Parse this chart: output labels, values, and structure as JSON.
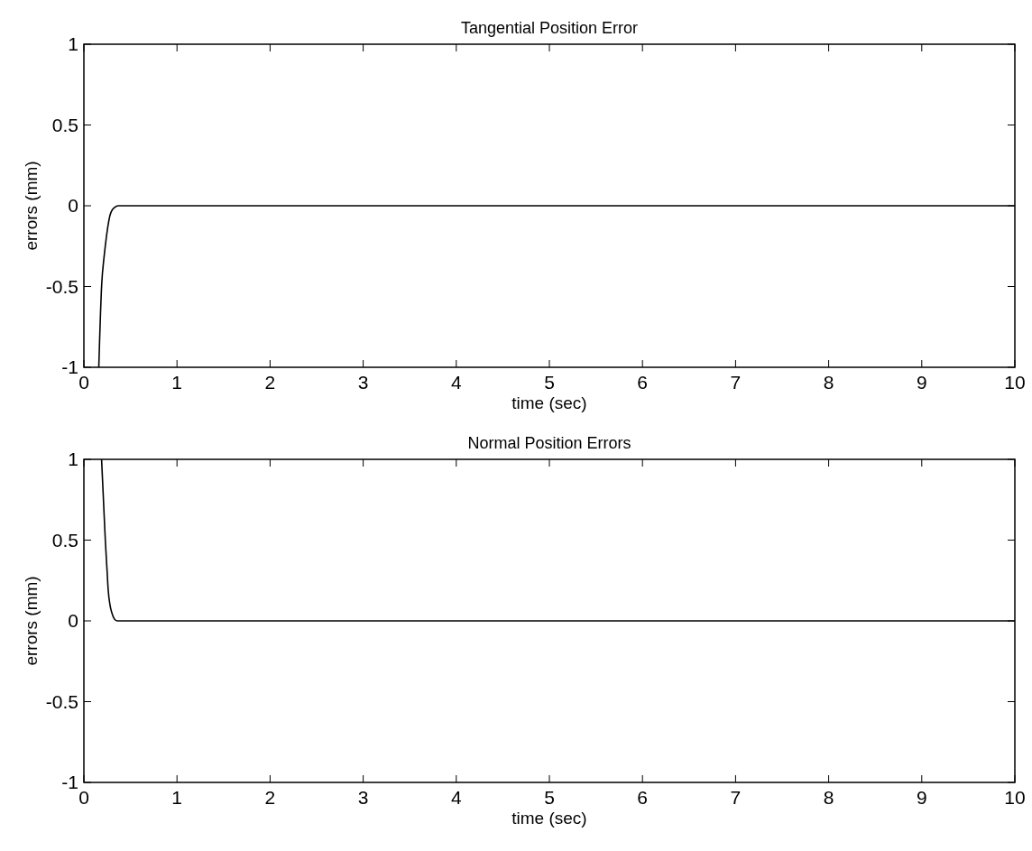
{
  "chart_data": [
    {
      "type": "line",
      "title": "Tangential Position Error",
      "xlabel": "time (sec)",
      "ylabel": "errors (mm)",
      "xlim": [
        0,
        10
      ],
      "xticks": [
        0,
        1,
        2,
        3,
        4,
        5,
        6,
        7,
        8,
        9,
        10
      ],
      "ylim": [
        -1,
        1
      ],
      "yticks": [
        -1,
        -0.5,
        0,
        0.5,
        1
      ],
      "grid": false,
      "series": [
        {
          "color": "#000000",
          "x": [
            0.16,
            0.19,
            0.22,
            0.24,
            0.26,
            0.28,
            0.3,
            0.33,
            0.37,
            0.5,
            1,
            2,
            4,
            6,
            8,
            10
          ],
          "values": [
            -1,
            -0.5,
            -0.3,
            -0.2,
            -0.12,
            -0.06,
            -0.03,
            -0.01,
            0,
            0,
            0,
            0,
            0,
            0,
            0,
            0
          ]
        }
      ]
    },
    {
      "type": "line",
      "title": "Normal Position Errors",
      "xlabel": "time (sec)",
      "ylabel": "errors (mm)",
      "xlim": [
        0,
        10
      ],
      "xticks": [
        0,
        1,
        2,
        3,
        4,
        5,
        6,
        7,
        8,
        9,
        10
      ],
      "ylim": [
        -1,
        1
      ],
      "yticks": [
        -1,
        -0.5,
        0,
        0.5,
        1
      ],
      "grid": false,
      "series": [
        {
          "color": "#000000",
          "x": [
            0.19,
            0.21,
            0.23,
            0.25,
            0.26,
            0.28,
            0.3,
            0.33,
            0.36,
            0.5,
            1,
            2,
            4,
            6,
            8,
            10
          ],
          "values": [
            1,
            0.75,
            0.5,
            0.3,
            0.2,
            0.1,
            0.05,
            0.01,
            0,
            0,
            0,
            0,
            0,
            0,
            0,
            0
          ]
        }
      ]
    }
  ]
}
